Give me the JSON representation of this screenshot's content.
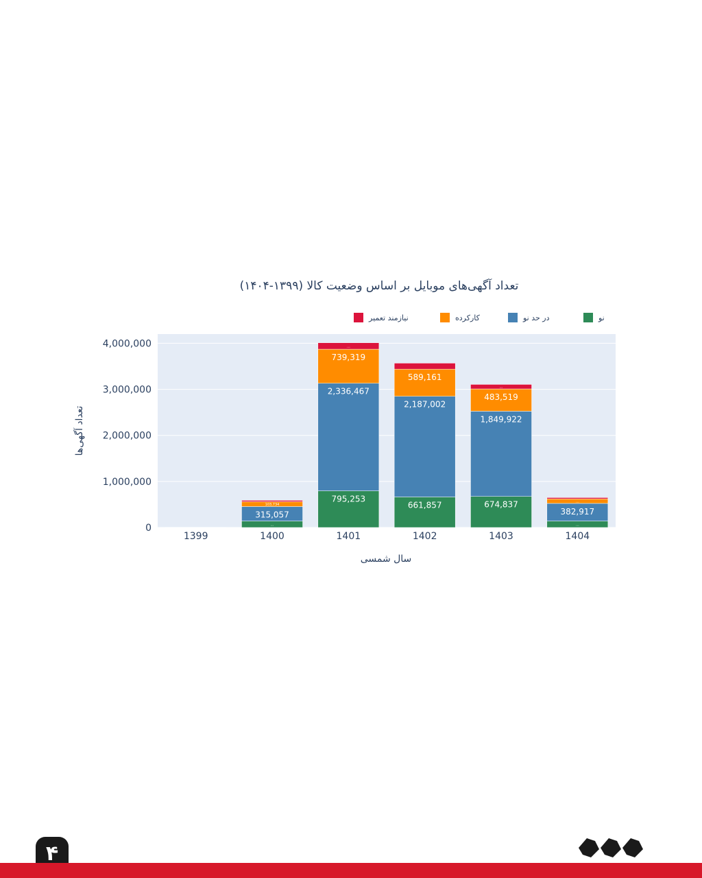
{
  "page": {
    "page_number": "۴",
    "brand_colors": {
      "accent": "#d7182a",
      "dark": "#1a1a1a"
    }
  },
  "chart_data": {
    "type": "bar",
    "stacked": true,
    "title": "تعداد آگهی‌های موبایل بر اساس وضعیت کالا (۱۳۹۹-۱۴۰۴)",
    "xlabel": "سال شمسی",
    "ylabel": "تعداد آگهی‌ها",
    "ylim": [
      0,
      4200000
    ],
    "yticks": [
      0,
      1000000,
      2000000,
      3000000,
      4000000
    ],
    "ytick_labels": [
      "0",
      "1,000,000",
      "2,000,000",
      "3,000,000",
      "4,000,000"
    ],
    "grid": true,
    "plot_bg": "#e5ecf6",
    "legend_placement": "top",
    "categories": [
      "1399",
      "1400",
      "1401",
      "1402",
      "1403",
      "1404"
    ],
    "series": [
      {
        "name": "نو",
        "color": "#2e8b57",
        "values": [
          1000,
          140000,
          795253,
          661857,
          674837,
          140000
        ],
        "labels": [
          "",
          "…",
          "795,253",
          "661,857",
          "674,837",
          "…"
        ]
      },
      {
        "name": "در حد نو",
        "color": "#4682b4",
        "values": [
          3000,
          315057,
          2336467,
          2187002,
          1849922,
          382917
        ],
        "labels": [
          "",
          "315,057",
          "2,336,467",
          "2,187,002",
          "1,849,922",
          "382,917"
        ]
      },
      {
        "name": "کارکرده",
        "color": "#ff8c00",
        "values": [
          500,
          103734,
          739319,
          589161,
          483519,
          98000
        ],
        "labels": [
          "",
          "103,734",
          "739,319",
          "589,161",
          "483,519",
          "…"
        ]
      },
      {
        "name": "نیازمند تعمیر",
        "color": "#dc143c",
        "values": [
          100,
          30000,
          140000,
          130000,
          98000,
          28000
        ],
        "labels": [
          "",
          "",
          "…",
          "",
          "…",
          ""
        ]
      }
    ]
  }
}
